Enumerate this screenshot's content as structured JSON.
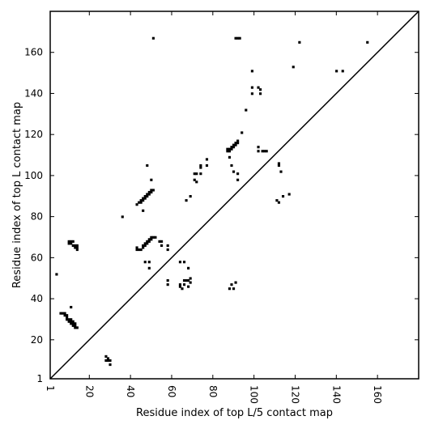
{
  "chart_data": {
    "type": "scatter",
    "title": "",
    "xlabel": "Residue index of top L/5 contact map",
    "ylabel": "Residue index of top L contact map",
    "xlim": [
      1,
      180
    ],
    "ylim": [
      1,
      180
    ],
    "x_ticks": [
      1,
      20,
      40,
      60,
      80,
      100,
      120,
      140,
      160
    ],
    "y_ticks": [
      1,
      20,
      40,
      60,
      80,
      100,
      120,
      140,
      160
    ],
    "tick_label_rotation_x": -90,
    "grid": false,
    "diagonal_line": true,
    "marker": "square",
    "marker_color": "#000000",
    "series": [
      {
        "points": [
          [
            4,
            52
          ],
          [
            6,
            33
          ],
          [
            7,
            33
          ],
          [
            8,
            33
          ],
          [
            8,
            32
          ],
          [
            9,
            32
          ],
          [
            9,
            31
          ],
          [
            9,
            30
          ],
          [
            10,
            30
          ],
          [
            10,
            29
          ],
          [
            11,
            30
          ],
          [
            11,
            29
          ],
          [
            11,
            28
          ],
          [
            12,
            29
          ],
          [
            12,
            28
          ],
          [
            12,
            27
          ],
          [
            13,
            28
          ],
          [
            13,
            27
          ],
          [
            13,
            26
          ],
          [
            14,
            26
          ],
          [
            11,
            36
          ],
          [
            10,
            68
          ],
          [
            10,
            67
          ],
          [
            11,
            68
          ],
          [
            11,
            67
          ],
          [
            12,
            68
          ],
          [
            12,
            66
          ],
          [
            13,
            65
          ],
          [
            13,
            66
          ],
          [
            14,
            66
          ],
          [
            14,
            65
          ],
          [
            14,
            64
          ],
          [
            28,
            12
          ],
          [
            28,
            10
          ],
          [
            29,
            11
          ],
          [
            29,
            10
          ],
          [
            30,
            10
          ],
          [
            30,
            8
          ],
          [
            36,
            80
          ],
          [
            43,
            86
          ],
          [
            44,
            87
          ],
          [
            45,
            87
          ],
          [
            45,
            88
          ],
          [
            46,
            88
          ],
          [
            46,
            89
          ],
          [
            47,
            89
          ],
          [
            47,
            90
          ],
          [
            48,
            90
          ],
          [
            48,
            91
          ],
          [
            49,
            91
          ],
          [
            49,
            92
          ],
          [
            50,
            92
          ],
          [
            50,
            93
          ],
          [
            51,
            93
          ],
          [
            43,
            65
          ],
          [
            43,
            64
          ],
          [
            44,
            64
          ],
          [
            45,
            64
          ],
          [
            46,
            65
          ],
          [
            46,
            66
          ],
          [
            47,
            66
          ],
          [
            47,
            67
          ],
          [
            48,
            67
          ],
          [
            48,
            68
          ],
          [
            49,
            68
          ],
          [
            49,
            69
          ],
          [
            50,
            69
          ],
          [
            50,
            70
          ],
          [
            51,
            70
          ],
          [
            52,
            70
          ],
          [
            46,
            83
          ],
          [
            47,
            58
          ],
          [
            49,
            58
          ],
          [
            49,
            55
          ],
          [
            48,
            105
          ],
          [
            50,
            98
          ],
          [
            51,
            167
          ],
          [
            54,
            68
          ],
          [
            55,
            68
          ],
          [
            55,
            66
          ],
          [
            58,
            66
          ],
          [
            58,
            64
          ],
          [
            58,
            49
          ],
          [
            58,
            47
          ],
          [
            64,
            58
          ],
          [
            66,
            58
          ],
          [
            64,
            47
          ],
          [
            64,
            46
          ],
          [
            65,
            45
          ],
          [
            66,
            47
          ],
          [
            66,
            49
          ],
          [
            67,
            49
          ],
          [
            68,
            49
          ],
          [
            68,
            46
          ],
          [
            68,
            55
          ],
          [
            69,
            50
          ],
          [
            69,
            48
          ],
          [
            67,
            88
          ],
          [
            69,
            90
          ],
          [
            71,
            101
          ],
          [
            72,
            101
          ],
          [
            71,
            98
          ],
          [
            72,
            97
          ],
          [
            74,
            104
          ],
          [
            74,
            105
          ],
          [
            74,
            101
          ],
          [
            77,
            108
          ],
          [
            77,
            105
          ],
          [
            87,
            113
          ],
          [
            87,
            112
          ],
          [
            88,
            112
          ],
          [
            88,
            113
          ],
          [
            89,
            113
          ],
          [
            89,
            114
          ],
          [
            90,
            114
          ],
          [
            90,
            115
          ],
          [
            91,
            115
          ],
          [
            91,
            116
          ],
          [
            92,
            116
          ],
          [
            92,
            117
          ],
          [
            88,
            109
          ],
          [
            89,
            105
          ],
          [
            90,
            102
          ],
          [
            92,
            101
          ],
          [
            92,
            98
          ],
          [
            94,
            121
          ],
          [
            96,
            132
          ],
          [
            88,
            45
          ],
          [
            89,
            47
          ],
          [
            90,
            45
          ],
          [
            91,
            48
          ],
          [
            91,
            167
          ],
          [
            92,
            167
          ],
          [
            93,
            167
          ],
          [
            99,
            151
          ],
          [
            99,
            143
          ],
          [
            99,
            140
          ],
          [
            102,
            143
          ],
          [
            103,
            142
          ],
          [
            103,
            140
          ],
          [
            102,
            114
          ],
          [
            102,
            112
          ],
          [
            104,
            112
          ],
          [
            105,
            112
          ],
          [
            106,
            112
          ],
          [
            112,
            106
          ],
          [
            112,
            105
          ],
          [
            113,
            102
          ],
          [
            111,
            88
          ],
          [
            112,
            87
          ],
          [
            114,
            90
          ],
          [
            117,
            91
          ],
          [
            119,
            153
          ],
          [
            122,
            165
          ],
          [
            140,
            151
          ],
          [
            143,
            151
          ],
          [
            155,
            165
          ]
        ]
      }
    ]
  }
}
